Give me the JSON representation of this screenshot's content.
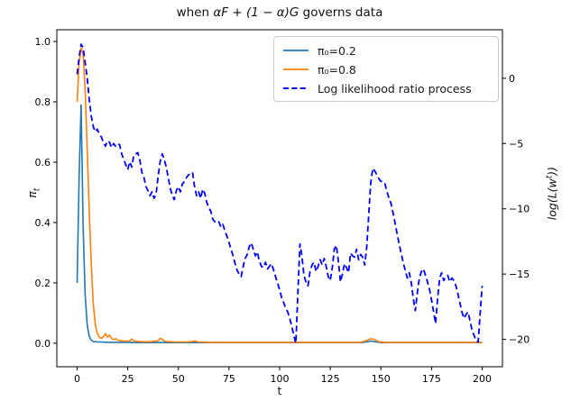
{
  "chart_data": {
    "type": "line",
    "title": {
      "pre": "when ",
      "math": "αF + (1 − α)G",
      "post": " governs data"
    },
    "xlabel": "t",
    "ylabel_left": {
      "symbol": "π",
      "sub": "t"
    },
    "ylabel_right": {
      "pre": "log(L(w",
      "sup": "t",
      "post": "))"
    },
    "grid": false,
    "legend_position": "upper right",
    "xlim": [
      -10,
      210
    ],
    "ylim_left": [
      -0.078,
      1.039
    ],
    "ylim_right": [
      -22.1,
      3.72
    ],
    "x_ticks": [
      0,
      25,
      50,
      75,
      100,
      125,
      150,
      175,
      200
    ],
    "x_tick_labels": [
      "0",
      "25",
      "50",
      "75",
      "100",
      "125",
      "150",
      "175",
      "200"
    ],
    "y_ticks_left": [
      0.0,
      0.2,
      0.4,
      0.6,
      0.8,
      1.0
    ],
    "y_tick_labels_left": [
      "0.0",
      "0.2",
      "0.4",
      "0.6",
      "0.8",
      "1.0"
    ],
    "y_ticks_right": [
      0,
      -5,
      -10,
      -15,
      -20
    ],
    "y_tick_labels_right": [
      "0",
      "−5",
      "−10",
      "−15",
      "−20"
    ],
    "series": [
      {
        "name": "π₀=0.2",
        "axis": "left",
        "color": "#1f77b4",
        "style": "solid",
        "points": [
          [
            0,
            0.2
          ],
          [
            1,
            0.55
          ],
          [
            2,
            0.79
          ],
          [
            3,
            0.38
          ],
          [
            4,
            0.16
          ],
          [
            5,
            0.06
          ],
          [
            6,
            0.022
          ],
          [
            7,
            0.01
          ],
          [
            8,
            0.006
          ],
          [
            10,
            0.004
          ],
          [
            12,
            0.004
          ],
          [
            15,
            0.003
          ],
          [
            20,
            0.003
          ],
          [
            30,
            0.002
          ],
          [
            40,
            0.002
          ],
          [
            60,
            0.002
          ],
          [
            80,
            0.002
          ],
          [
            100,
            0.002
          ],
          [
            120,
            0.002
          ],
          [
            140,
            0.002
          ],
          [
            143,
            0.004
          ],
          [
            145,
            0.007
          ],
          [
            147,
            0.005
          ],
          [
            150,
            0.002
          ],
          [
            160,
            0.002
          ],
          [
            180,
            0.002
          ],
          [
            200,
            0.002
          ]
        ]
      },
      {
        "name": "π₀=0.8",
        "axis": "left",
        "color": "#ff7f0e",
        "style": "solid",
        "points": [
          [
            0,
            0.8
          ],
          [
            1,
            0.93
          ],
          [
            2,
            0.98
          ],
          [
            3,
            0.955
          ],
          [
            4,
            0.84
          ],
          [
            5,
            0.64
          ],
          [
            6,
            0.44
          ],
          [
            7,
            0.26
          ],
          [
            8,
            0.13
          ],
          [
            9,
            0.062
          ],
          [
            10,
            0.032
          ],
          [
            11,
            0.02
          ],
          [
            12,
            0.016
          ],
          [
            13,
            0.022
          ],
          [
            14,
            0.032
          ],
          [
            15,
            0.02
          ],
          [
            16,
            0.027
          ],
          [
            17,
            0.016
          ],
          [
            18,
            0.012
          ],
          [
            19,
            0.015
          ],
          [
            20,
            0.01
          ],
          [
            22,
            0.008
          ],
          [
            24,
            0.007
          ],
          [
            26,
            0.007
          ],
          [
            27,
            0.014
          ],
          [
            28,
            0.008
          ],
          [
            30,
            0.006
          ],
          [
            33,
            0.005
          ],
          [
            36,
            0.005
          ],
          [
            40,
            0.008
          ],
          [
            41,
            0.016
          ],
          [
            42,
            0.013
          ],
          [
            43,
            0.007
          ],
          [
            45,
            0.005
          ],
          [
            48,
            0.004
          ],
          [
            50,
            0.004
          ],
          [
            55,
            0.004
          ],
          [
            58,
            0.007
          ],
          [
            60,
            0.004
          ],
          [
            65,
            0.003
          ],
          [
            70,
            0.003
          ],
          [
            80,
            0.003
          ],
          [
            90,
            0.003
          ],
          [
            100,
            0.003
          ],
          [
            110,
            0.003
          ],
          [
            120,
            0.003
          ],
          [
            130,
            0.003
          ],
          [
            140,
            0.003
          ],
          [
            143,
            0.009
          ],
          [
            145,
            0.015
          ],
          [
            147,
            0.012
          ],
          [
            149,
            0.005
          ],
          [
            152,
            0.003
          ],
          [
            160,
            0.003
          ],
          [
            170,
            0.003
          ],
          [
            180,
            0.003
          ],
          [
            190,
            0.003
          ],
          [
            200,
            0.003
          ]
        ]
      },
      {
        "name": "Log likelihood ratio process",
        "axis": "right",
        "color": "#0000ff",
        "style": "dashed",
        "points": [
          [
            0,
            0.3
          ],
          [
            1,
            1.6
          ],
          [
            2,
            2.6
          ],
          [
            3,
            2.35
          ],
          [
            4,
            1.2
          ],
          [
            5,
            0.0
          ],
          [
            6,
            -1.6
          ],
          [
            7,
            -2.9
          ],
          [
            8,
            -3.7
          ],
          [
            9,
            -4.1
          ],
          [
            10,
            -3.9
          ],
          [
            11,
            -4.3
          ],
          [
            12,
            -4.5
          ],
          [
            13,
            -4.9
          ],
          [
            14,
            -5.2
          ],
          [
            15,
            -4.8
          ],
          [
            16,
            -4.9
          ],
          [
            17,
            -5.3
          ],
          [
            18,
            -5.0
          ],
          [
            19,
            -5.2
          ],
          [
            20,
            -5.0
          ],
          [
            21,
            -5.1
          ],
          [
            22,
            -5.8
          ],
          [
            23,
            -6.2
          ],
          [
            24,
            -6.6
          ],
          [
            25,
            -7.0
          ],
          [
            26,
            -6.4
          ],
          [
            27,
            -6.8
          ],
          [
            28,
            -5.9
          ],
          [
            29,
            -5.8
          ],
          [
            30,
            -5.7
          ],
          [
            31,
            -6.3
          ],
          [
            32,
            -7.2
          ],
          [
            33,
            -7.6
          ],
          [
            34,
            -8.3
          ],
          [
            35,
            -8.6
          ],
          [
            36,
            -9.0
          ],
          [
            37,
            -8.7
          ],
          [
            38,
            -9.2
          ],
          [
            39,
            -8.9
          ],
          [
            40,
            -7.5
          ],
          [
            41,
            -6.4
          ],
          [
            42,
            -5.8
          ],
          [
            43,
            -6.2
          ],
          [
            44,
            -6.8
          ],
          [
            45,
            -7.6
          ],
          [
            46,
            -8.4
          ],
          [
            47,
            -9.0
          ],
          [
            48,
            -9.3
          ],
          [
            49,
            -8.6
          ],
          [
            50,
            -8.3
          ],
          [
            51,
            -8.7
          ],
          [
            52,
            -8.1
          ],
          [
            53,
            -7.9
          ],
          [
            54,
            -7.6
          ],
          [
            55,
            -7.4
          ],
          [
            56,
            -7.3
          ],
          [
            57,
            -7.2
          ],
          [
            58,
            -8.3
          ],
          [
            59,
            -9.0
          ],
          [
            60,
            -8.7
          ],
          [
            61,
            -9.2
          ],
          [
            62,
            -8.5
          ],
          [
            63,
            -8.8
          ],
          [
            64,
            -9.5
          ],
          [
            65,
            -9.9
          ],
          [
            66,
            -10.2
          ],
          [
            67,
            -10.8
          ],
          [
            68,
            -11.0
          ],
          [
            69,
            -11.1
          ],
          [
            70,
            -11.0
          ],
          [
            71,
            -11.4
          ],
          [
            72,
            -11.2
          ],
          [
            73,
            -11.7
          ],
          [
            74,
            -12.1
          ],
          [
            75,
            -12.6
          ],
          [
            76,
            -13.1
          ],
          [
            77,
            -13.6
          ],
          [
            78,
            -14.2
          ],
          [
            79,
            -14.7
          ],
          [
            80,
            -15.0
          ],
          [
            81,
            -15.2
          ],
          [
            82,
            -14.4
          ],
          [
            83,
            -13.8
          ],
          [
            84,
            -13.5
          ],
          [
            85,
            -12.9
          ],
          [
            86,
            -12.6
          ],
          [
            87,
            -13.1
          ],
          [
            88,
            -13.6
          ],
          [
            89,
            -13.3
          ],
          [
            90,
            -14.0
          ],
          [
            91,
            -14.4
          ],
          [
            92,
            -14.5
          ],
          [
            93,
            -14.1
          ],
          [
            94,
            -14.6
          ],
          [
            95,
            -14.4
          ],
          [
            96,
            -14.2
          ],
          [
            97,
            -14.7
          ],
          [
            98,
            -15.2
          ],
          [
            99,
            -15.7
          ],
          [
            100,
            -16.2
          ],
          [
            101,
            -16.8
          ],
          [
            102,
            -17.2
          ],
          [
            103,
            -17.6
          ],
          [
            104,
            -17.9
          ],
          [
            105,
            -18.4
          ],
          [
            106,
            -19.0
          ],
          [
            107,
            -19.7
          ],
          [
            108,
            -20.3
          ],
          [
            109,
            -16.5
          ],
          [
            110,
            -12.7
          ],
          [
            111,
            -13.6
          ],
          [
            112,
            -15.1
          ],
          [
            113,
            -15.6
          ],
          [
            114,
            -15.9
          ],
          [
            115,
            -14.8
          ],
          [
            116,
            -14.3
          ],
          [
            117,
            -14.1
          ],
          [
            118,
            -14.8
          ],
          [
            119,
            -14.4
          ],
          [
            120,
            -13.9
          ],
          [
            121,
            -14.3
          ],
          [
            122,
            -13.8
          ],
          [
            123,
            -14.4
          ],
          [
            124,
            -15.2
          ],
          [
            125,
            -15.5
          ],
          [
            126,
            -14.5
          ],
          [
            127,
            -13.1
          ],
          [
            128,
            -12.8
          ],
          [
            129,
            -14.0
          ],
          [
            130,
            -15.6
          ],
          [
            131,
            -15.0
          ],
          [
            132,
            -14.2
          ],
          [
            133,
            -14.5
          ],
          [
            134,
            -14.9
          ],
          [
            135,
            -13.4
          ],
          [
            136,
            -13.6
          ],
          [
            137,
            -13.7
          ],
          [
            138,
            -13.1
          ],
          [
            139,
            -13.9
          ],
          [
            140,
            -13.5
          ],
          [
            141,
            -13.7
          ],
          [
            142,
            -14.3
          ],
          [
            143,
            -12.9
          ],
          [
            144,
            -10.4
          ],
          [
            145,
            -8.0
          ],
          [
            146,
            -6.9
          ],
          [
            147,
            -7.1
          ],
          [
            148,
            -7.4
          ],
          [
            149,
            -7.7
          ],
          [
            150,
            -7.9
          ],
          [
            151,
            -7.9
          ],
          [
            152,
            -8.1
          ],
          [
            153,
            -8.7
          ],
          [
            154,
            -9.2
          ],
          [
            155,
            -9.6
          ],
          [
            156,
            -10.3
          ],
          [
            157,
            -11.1
          ],
          [
            158,
            -11.9
          ],
          [
            159,
            -12.7
          ],
          [
            160,
            -13.4
          ],
          [
            161,
            -14.1
          ],
          [
            162,
            -14.7
          ],
          [
            163,
            -15.3
          ],
          [
            164,
            -14.9
          ],
          [
            165,
            -15.7
          ],
          [
            166,
            -16.9
          ],
          [
            167,
            -17.8
          ],
          [
            168,
            -16.4
          ],
          [
            169,
            -15.3
          ],
          [
            170,
            -14.8
          ],
          [
            171,
            -14.6
          ],
          [
            172,
            -15.1
          ],
          [
            173,
            -15.6
          ],
          [
            174,
            -16.2
          ],
          [
            175,
            -17.0
          ],
          [
            176,
            -17.9
          ],
          [
            177,
            -18.8
          ],
          [
            178,
            -16.9
          ],
          [
            179,
            -15.3
          ],
          [
            180,
            -14.9
          ],
          [
            181,
            -15.5
          ],
          [
            182,
            -15.2
          ],
          [
            183,
            -15.1
          ],
          [
            184,
            -15.6
          ],
          [
            185,
            -15.3
          ],
          [
            186,
            -15.5
          ],
          [
            187,
            -15.9
          ],
          [
            188,
            -16.5
          ],
          [
            189,
            -17.2
          ],
          [
            190,
            -17.9
          ],
          [
            191,
            -18.4
          ],
          [
            192,
            -18.1
          ],
          [
            193,
            -17.9
          ],
          [
            194,
            -18.6
          ],
          [
            195,
            -19.3
          ],
          [
            196,
            -19.7
          ],
          [
            197,
            -20.1
          ],
          [
            198,
            -20.2
          ],
          [
            199,
            -18.0
          ],
          [
            200,
            -15.9
          ]
        ]
      }
    ]
  }
}
